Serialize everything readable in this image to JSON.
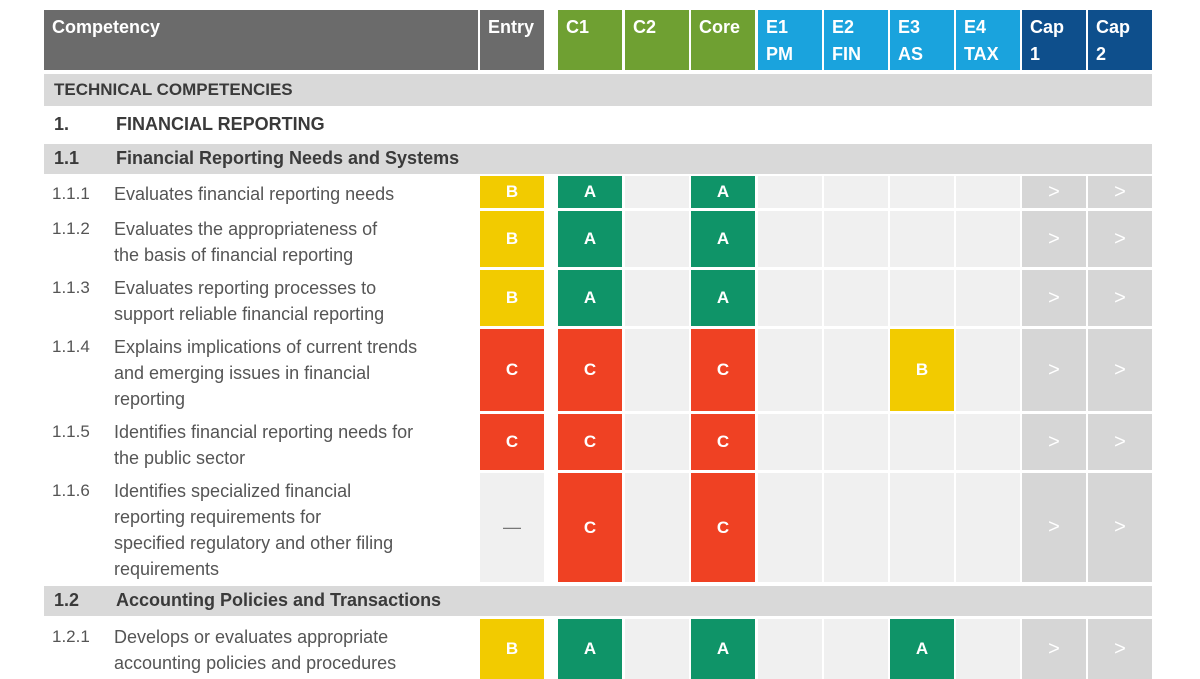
{
  "header": {
    "competency": "Competency",
    "columns": [
      {
        "label": "Entry",
        "sub": "",
        "color": "#6b6b6b"
      },
      {
        "label": "C1",
        "sub": "",
        "color": "#6fa032"
      },
      {
        "label": "C2",
        "sub": "",
        "color": "#6fa032"
      },
      {
        "label": "Core",
        "sub": "",
        "color": "#6fa032"
      },
      {
        "label": "E1",
        "sub": "PM",
        "color": "#1aa3dd"
      },
      {
        "label": "E2",
        "sub": "FIN",
        "color": "#1aa3dd"
      },
      {
        "label": "E3",
        "sub": "AS",
        "color": "#1aa3dd"
      },
      {
        "label": "E4",
        "sub": "TAX",
        "color": "#1aa3dd"
      },
      {
        "label": "Cap",
        "sub": "1",
        "color": "#0e4f8c"
      },
      {
        "label": "Cap",
        "sub": "2",
        "color": "#0e4f8c"
      }
    ]
  },
  "colors": {
    "B": "#f2cb00",
    "A": "#0f9468",
    "C": "#ef4123",
    "cap_gray": "#d6d6d6",
    "light_gray": "#f0f0f0",
    "band_gray": "#d9d9d9"
  },
  "sections": {
    "technical": "TECHNICAL COMPETENCIES",
    "s1_num": "1.",
    "s1_title": "FINANCIAL REPORTING",
    "s11_num": "1.1",
    "s11_title": "Financial Reporting Needs and Systems",
    "s12_num": "1.2",
    "s12_title": "Accounting Policies and Transactions"
  },
  "arrow_glyph": ">",
  "rows": [
    {
      "num": "1.1.1",
      "lines": [
        "Evaluates financial reporting needs"
      ],
      "levels": [
        "B",
        "A",
        "",
        "A",
        "",
        "",
        "",
        "",
        "",
        ""
      ]
    },
    {
      "num": "1.1.2",
      "lines": [
        "Evaluates the appropriateness of",
        "the basis of financial reporting"
      ],
      "levels": [
        "B",
        "A",
        "",
        "A",
        "",
        "",
        "",
        "",
        "",
        ""
      ]
    },
    {
      "num": "1.1.3",
      "lines": [
        "Evaluates reporting processes to",
        "support reliable financial reporting"
      ],
      "levels": [
        "B",
        "A",
        "",
        "A",
        "",
        "",
        "",
        "",
        "",
        ""
      ]
    },
    {
      "num": "1.1.4",
      "lines": [
        "Explains implications of current trends",
        "and emerging issues in financial",
        "reporting"
      ],
      "levels": [
        "C",
        "C",
        "",
        "C",
        "",
        "",
        "B",
        "",
        "",
        ""
      ]
    },
    {
      "num": "1.1.5",
      "lines": [
        "Identifies financial reporting needs for",
        "the public sector"
      ],
      "levels": [
        "C",
        "C",
        "",
        "C",
        "",
        "",
        "",
        "",
        "",
        ""
      ]
    },
    {
      "num": "1.1.6",
      "lines": [
        "Identifies specialized financial",
        "reporting requirements for",
        "specified regulatory and other filing",
        "requirements"
      ],
      "levels": [
        "—",
        "C",
        "",
        "C",
        "",
        "",
        "",
        "",
        "",
        ""
      ]
    },
    {
      "num": "1.2.1",
      "lines": [
        "Develops or evaluates appropriate",
        "accounting policies and procedures"
      ],
      "levels": [
        "B",
        "A",
        "",
        "A",
        "",
        "",
        "A",
        "",
        "",
        ""
      ]
    }
  ]
}
